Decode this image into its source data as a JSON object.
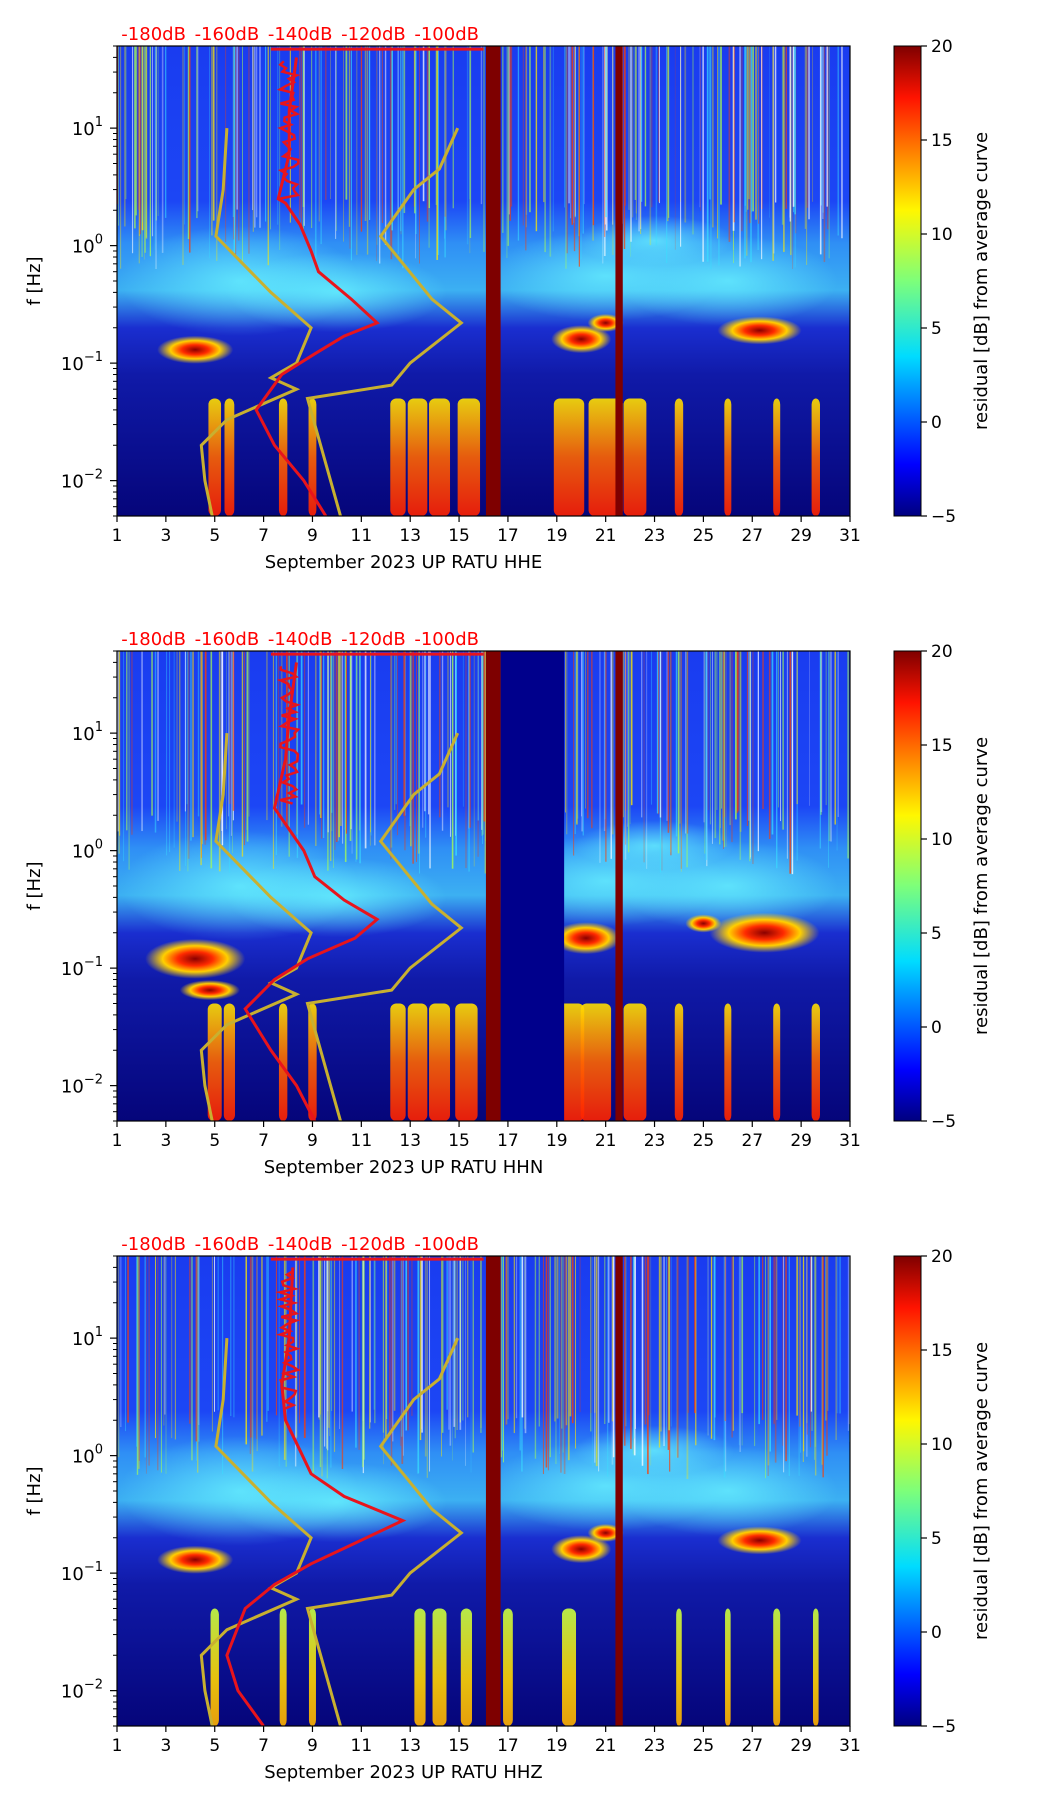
{
  "chart_data": [
    {
      "type": "heatmap",
      "station": "September 2023 UP RATU  HHE",
      "xlabel": "September 2023 UP RATU  HHE",
      "ylabel": "f [Hz]",
      "x_ticks": [
        "1",
        "3",
        "5",
        "7",
        "9",
        "11",
        "13",
        "15",
        "17",
        "19",
        "21",
        "23",
        "25",
        "27",
        "29",
        "31"
      ],
      "y_ticks": [
        "10^-2",
        "10^-1",
        "10^0",
        "10^1"
      ],
      "y_tick_labels": [
        {
          "base": "10",
          "exp": "−2"
        },
        {
          "base": "10",
          "exp": "−1"
        },
        {
          "base": "10",
          "exp": "0"
        },
        {
          "base": "10",
          "exp": "1"
        }
      ],
      "top_ticks": [
        "-180dB",
        "-160dB",
        "-140dB",
        "-120dB",
        "-100dB"
      ],
      "colorbar_label": "residual [dB] from average curve",
      "colorbar_ticks": [
        "20",
        "15",
        "10",
        "5",
        "0",
        "−5"
      ],
      "xlim": [
        1,
        31
      ],
      "ylim_hz": [
        0.005,
        50
      ],
      "clim": [
        -5,
        20
      ],
      "gap_day_ranges": [],
      "red_curve_label": "average PSD (dB scale on top axis)",
      "yellow_curve_label": "NLNM / NHNM noise models"
    },
    {
      "type": "heatmap",
      "station": "September 2023 UP RATU  HHN",
      "xlabel": "September 2023 UP RATU  HHN",
      "ylabel": "f [Hz]",
      "x_ticks": [
        "1",
        "3",
        "5",
        "7",
        "9",
        "11",
        "13",
        "15",
        "17",
        "19",
        "21",
        "23",
        "25",
        "27",
        "29",
        "31"
      ],
      "y_ticks": [
        "10^-2",
        "10^-1",
        "10^0",
        "10^1"
      ],
      "y_tick_labels": [
        {
          "base": "10",
          "exp": "−2"
        },
        {
          "base": "10",
          "exp": "−1"
        },
        {
          "base": "10",
          "exp": "0"
        },
        {
          "base": "10",
          "exp": "1"
        }
      ],
      "top_ticks": [
        "-180dB",
        "-160dB",
        "-140dB",
        "-120dB",
        "-100dB"
      ],
      "colorbar_label": "residual [dB] from average curve",
      "colorbar_ticks": [
        "20",
        "15",
        "10",
        "5",
        "0",
        "−5"
      ],
      "xlim": [
        1,
        31
      ],
      "ylim_hz": [
        0.005,
        50
      ],
      "clim": [
        -5,
        20
      ],
      "gap_day_ranges": [
        [
          16.7,
          19.3
        ]
      ],
      "red_curve_label": "average PSD (dB scale on top axis)",
      "yellow_curve_label": "NLNM / NHNM noise models"
    },
    {
      "type": "heatmap",
      "station": "September 2023 UP RATU  HHZ",
      "xlabel": "September 2023 UP RATU  HHZ",
      "ylabel": "f [Hz]",
      "x_ticks": [
        "1",
        "3",
        "5",
        "7",
        "9",
        "11",
        "13",
        "15",
        "17",
        "19",
        "21",
        "23",
        "25",
        "27",
        "29",
        "31"
      ],
      "y_ticks": [
        "10^-2",
        "10^-1",
        "10^0",
        "10^1"
      ],
      "y_tick_labels": [
        {
          "base": "10",
          "exp": "−2"
        },
        {
          "base": "10",
          "exp": "−1"
        },
        {
          "base": "10",
          "exp": "0"
        },
        {
          "base": "10",
          "exp": "1"
        }
      ],
      "top_ticks": [
        "-180dB",
        "-160dB",
        "-140dB",
        "-120dB",
        "-100dB"
      ],
      "colorbar_label": "residual [dB] from average curve",
      "colorbar_ticks": [
        "20",
        "15",
        "10",
        "5",
        "0",
        "−5"
      ],
      "xlim": [
        1,
        31
      ],
      "ylim_hz": [
        0.005,
        50
      ],
      "clim": [
        -5,
        20
      ],
      "gap_day_ranges": [],
      "red_curve_label": "average PSD (dB scale on top axis)",
      "yellow_curve_label": "NLNM / NHNM noise models"
    }
  ],
  "colors": {
    "top_tick_text": "#ff0000",
    "psd_curve": "#e8141c",
    "noise_model": "#c8b030",
    "gap_bar": "#7e0000"
  }
}
